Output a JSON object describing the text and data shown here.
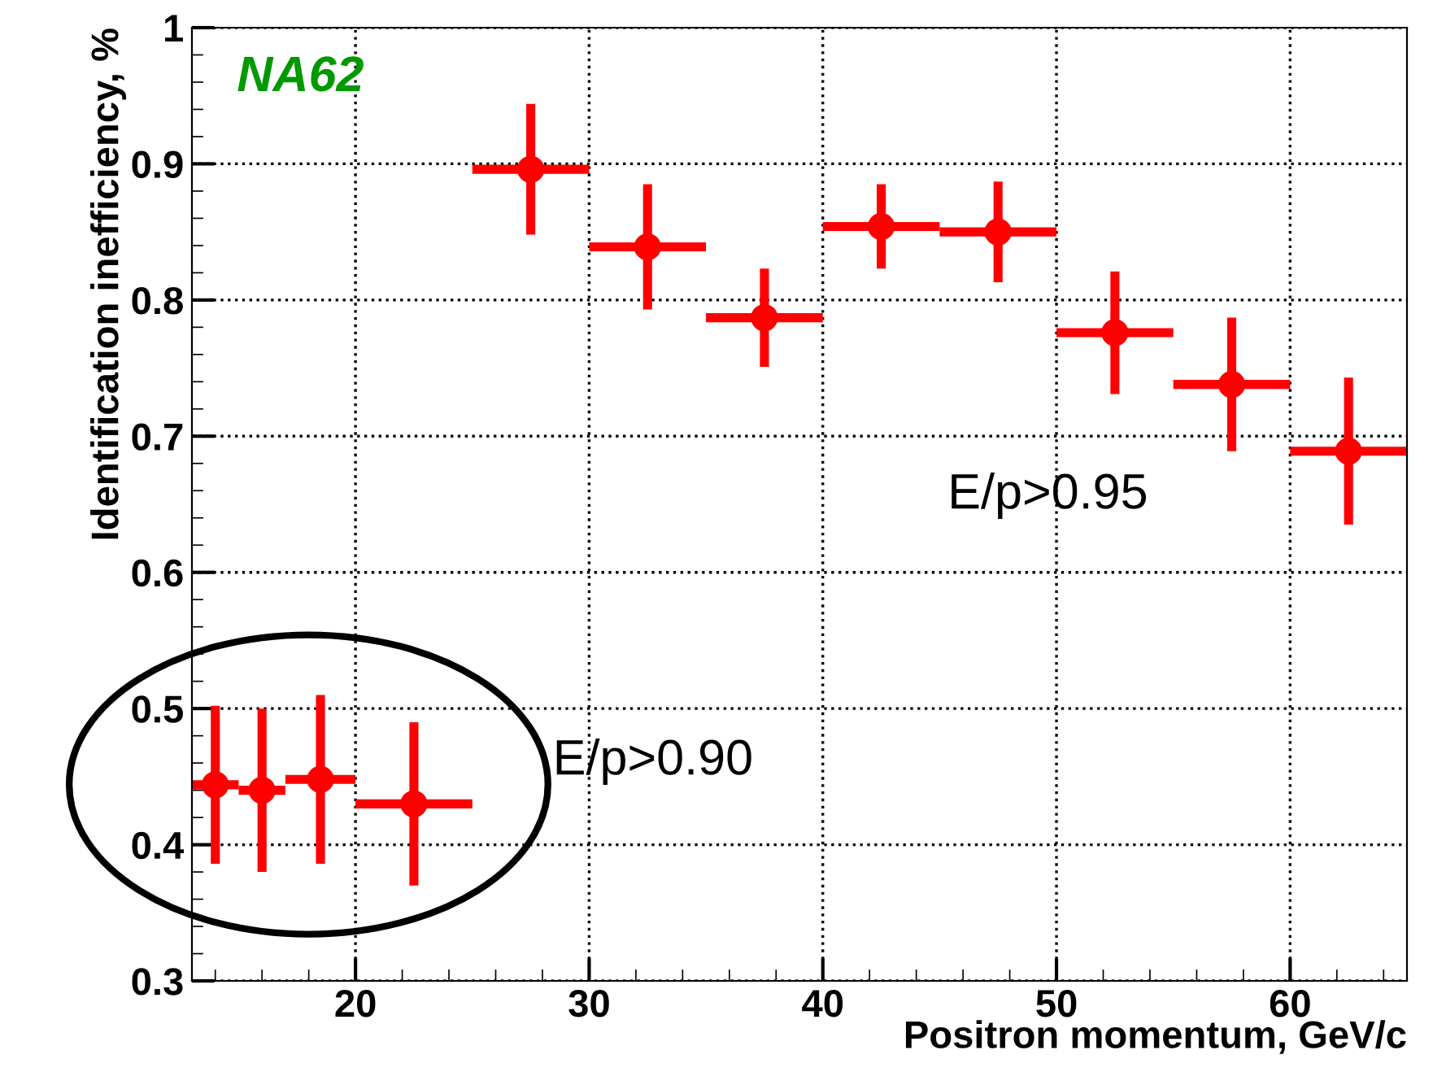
{
  "chart_data": {
    "type": "scatter",
    "xlabel": "Positron momentum, GeV/c",
    "ylabel": "Identification inefficiency, %",
    "series": [
      {
        "color": "#ff0000",
        "x": [
          27.5,
          32.5,
          37.5,
          42.5,
          47.5,
          52.5,
          57.5,
          62.5
        ],
        "values": [
          0.896,
          0.839,
          0.787,
          0.854,
          0.85,
          0.776,
          0.738,
          0.689
        ],
        "errors": [
          0.048,
          0.046,
          0.036,
          0.031,
          0.037,
          0.045,
          0.049,
          0.054
        ],
        "xerrors": [
          2.5,
          2.5,
          2.5,
          2.5,
          2.5,
          2.5,
          2.5,
          2.5
        ]
      },
      {
        "color": "#ff0000",
        "x": [
          14,
          16,
          18.5,
          22.5
        ],
        "values": [
          0.444,
          0.44,
          0.448,
          0.43
        ],
        "errors": [
          0.058,
          0.06,
          0.062,
          0.06
        ],
        "xerrors": [
          1,
          1,
          1.5,
          2.5
        ]
      }
    ],
    "annotations": [
      "NA62",
      "E/p>0.95",
      "E/p>0.90"
    ],
    "xlim": [
      13,
      65
    ],
    "xticks": [
      20,
      30,
      40,
      50,
      60
    ],
    "ylim": [
      0.3,
      1
    ],
    "yticks": [
      0.3,
      0.4,
      0.5,
      0.6,
      0.7,
      0.8,
      0.9,
      1
    ],
    "grid": true,
    "marker": "circle",
    "legend": false
  }
}
